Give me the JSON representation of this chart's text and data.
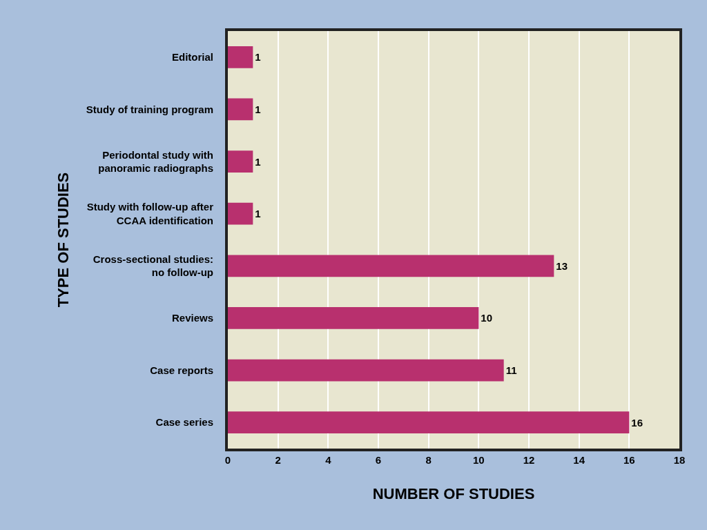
{
  "chart_data": {
    "type": "bar",
    "orientation": "horizontal",
    "xlabel": "NUMBER OF STUDIES",
    "ylabel": "TYPE OF STUDIES",
    "categories": [
      "Editorial",
      "Study of training program",
      "Periodontal study with panoramic radiographs",
      "Study with follow-up after CCAA identification",
      "Cross-sectional studies: no follow-up",
      "Reviews",
      "Case reports",
      "Case series"
    ],
    "values": [
      1,
      1,
      1,
      1,
      13,
      10,
      11,
      16
    ],
    "color": "#b8306e",
    "xlim": [
      0,
      18
    ],
    "xticks": [
      0,
      2,
      4,
      6,
      8,
      10,
      12,
      14,
      16,
      18
    ],
    "grid": "x",
    "data_labels": true
  }
}
